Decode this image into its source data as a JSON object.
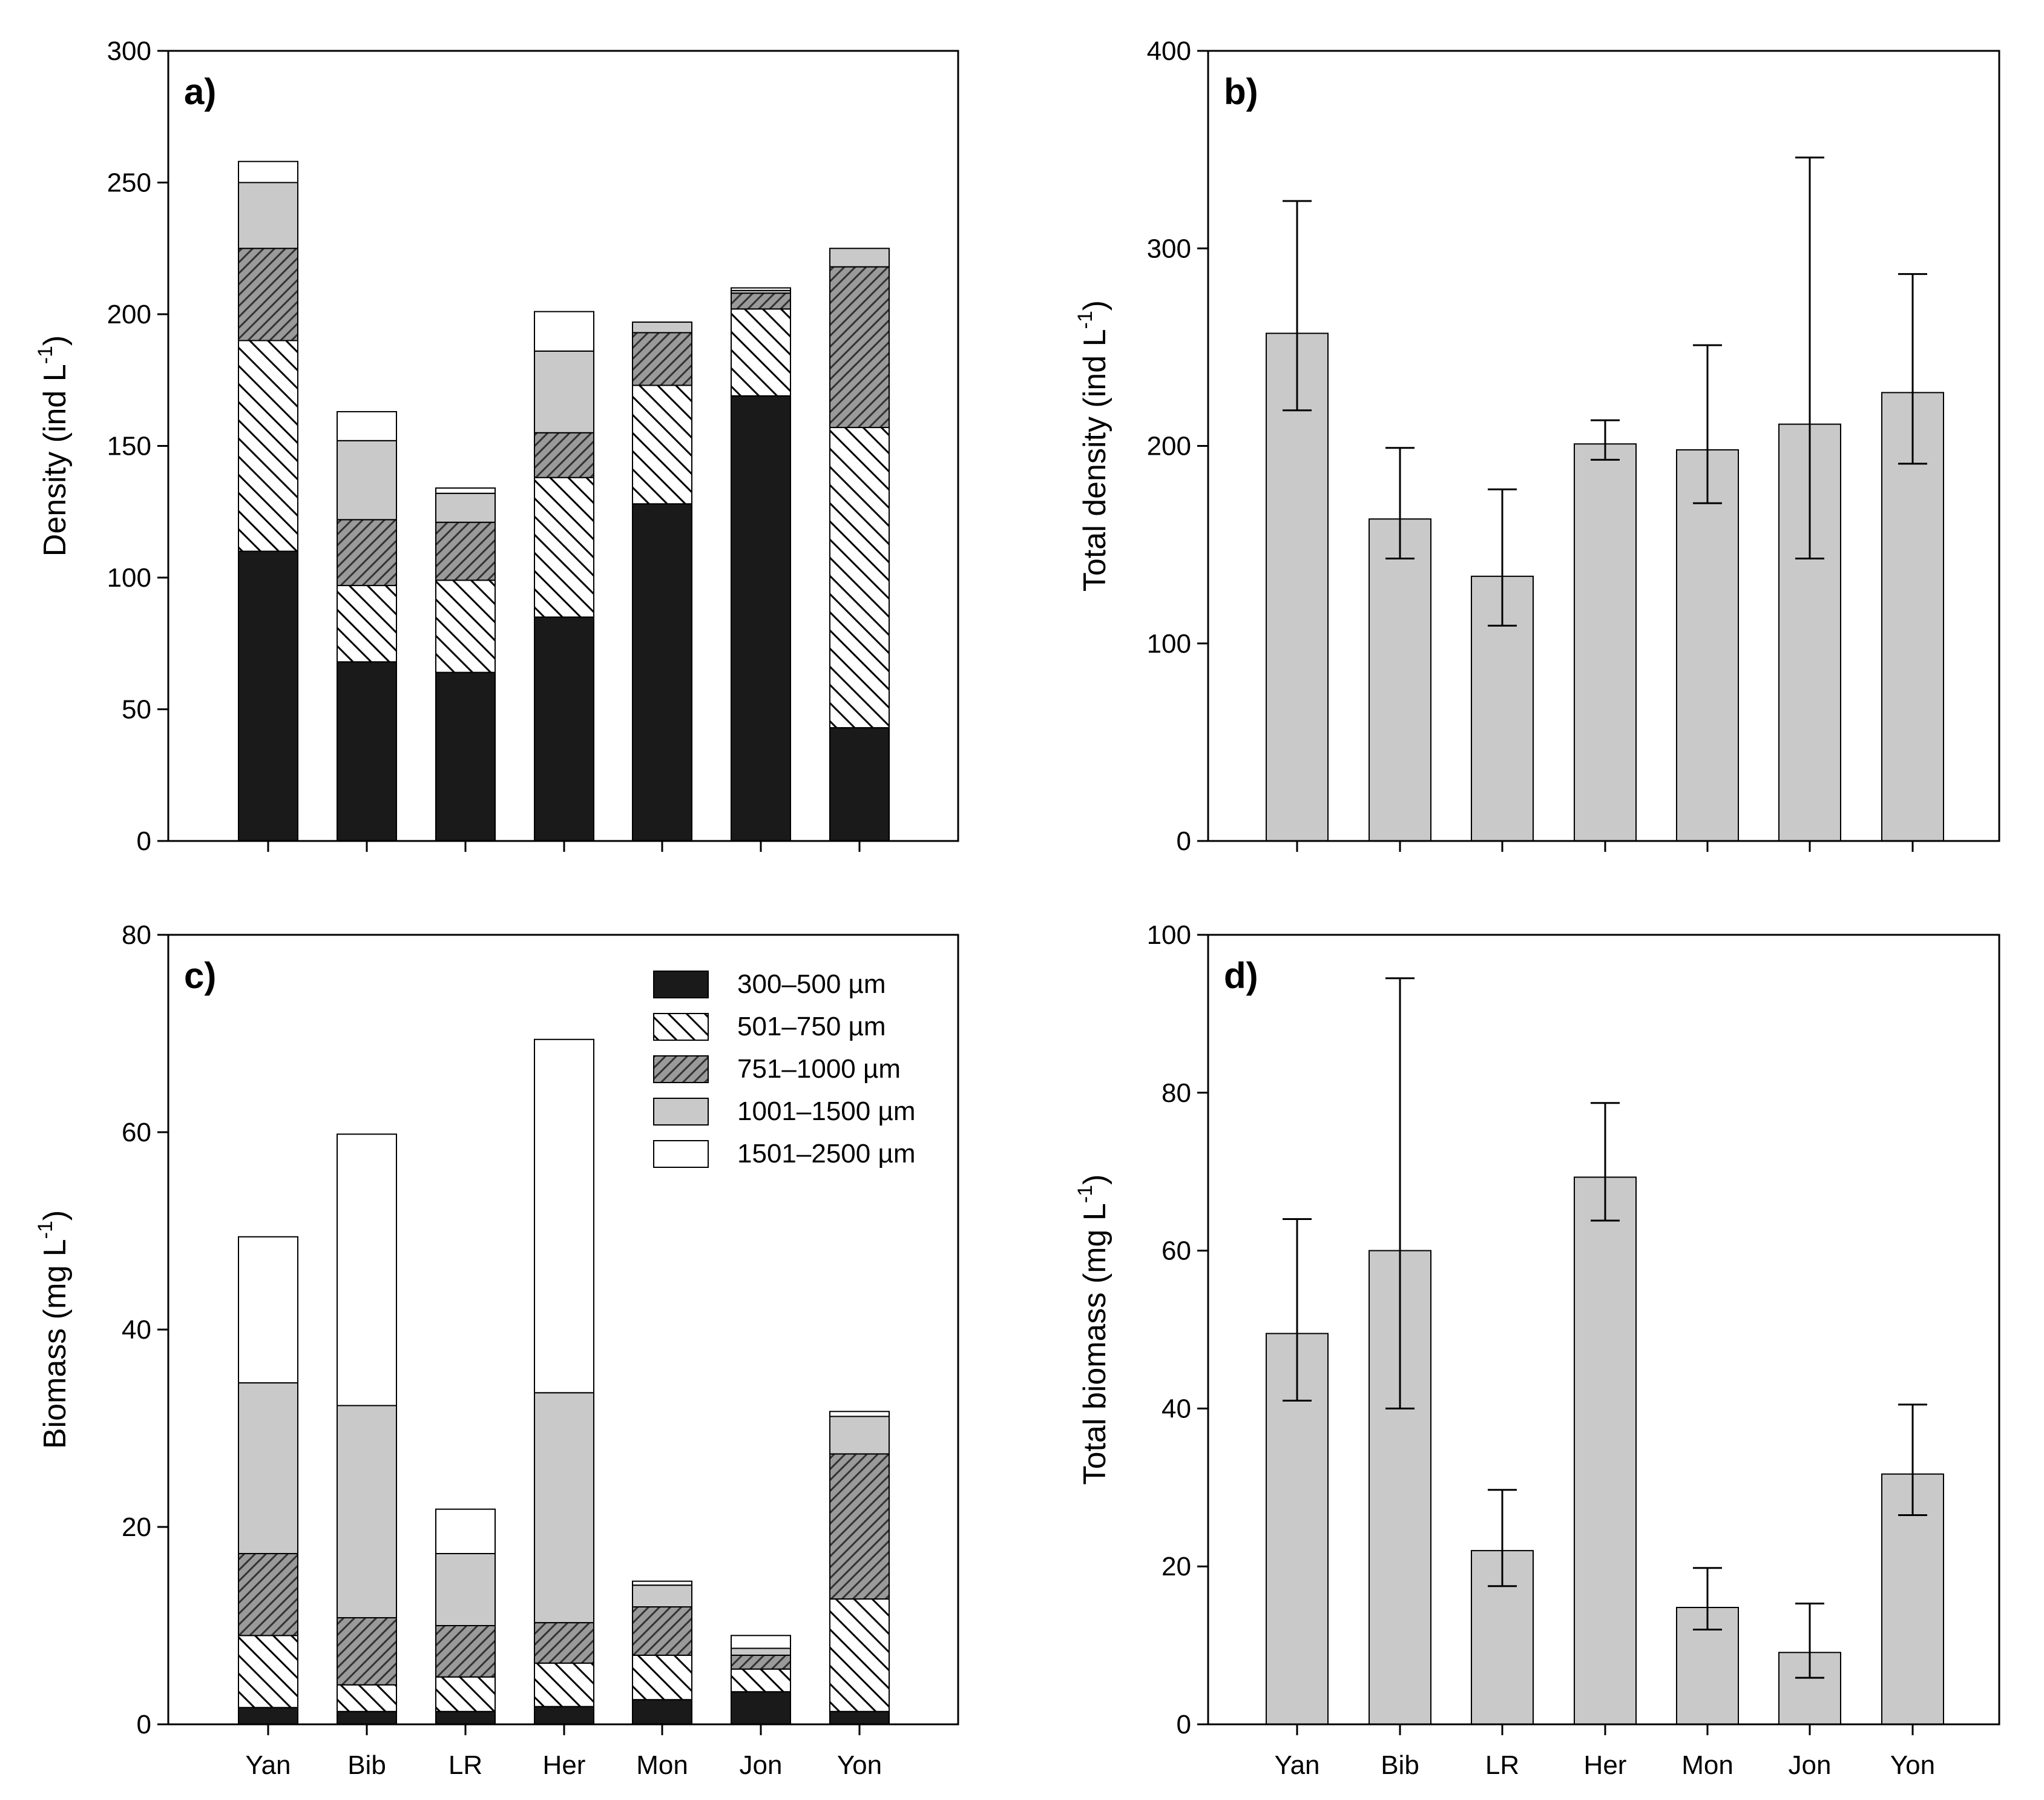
{
  "chart_data": [
    {
      "panel": "a)",
      "type": "stacked_bar",
      "ylabel": "Density (ind L",
      "ylabel_sup": "-1",
      "ylabel_end": ")",
      "ylim": [
        0,
        300
      ],
      "yticks": [
        0,
        50,
        100,
        150,
        200,
        250,
        300
      ],
      "categories": [
        "Yan",
        "Bib",
        "LR",
        "Her",
        "Mon",
        "Jon",
        "Yon"
      ],
      "series": [
        {
          "name": "300–500 µm",
          "pattern": "solid-black",
          "values": [
            110,
            68,
            64,
            85,
            128,
            169,
            43
          ]
        },
        {
          "name": "501–750 µm",
          "pattern": "hatch-back",
          "values": [
            80,
            29,
            35,
            53,
            45,
            33,
            114
          ]
        },
        {
          "name": "751–1000 µm",
          "pattern": "hatch-gray",
          "values": [
            35,
            25,
            22,
            17,
            20,
            6,
            61
          ]
        },
        {
          "name": "1001–1500 µm",
          "pattern": "solid-gray",
          "values": [
            25,
            30,
            11,
            31,
            4,
            1,
            7
          ]
        },
        {
          "name": "1501–2500 µm",
          "pattern": "solid-white",
          "values": [
            8,
            11,
            2,
            15,
            0,
            1,
            0
          ]
        }
      ]
    },
    {
      "panel": "b)",
      "type": "bar_errorbar",
      "ylabel": "Total density (ind L",
      "ylabel_sup": "-1",
      "ylabel_end": ")",
      "ylim": [
        0,
        400
      ],
      "yticks": [
        0,
        100,
        200,
        300,
        400
      ],
      "categories": [
        "Yan",
        "Bib",
        "LR",
        "Her",
        "Mon",
        "Jon",
        "Yon"
      ],
      "values": [
        257,
        163,
        134,
        201,
        198,
        211,
        227
      ],
      "err_low": [
        218,
        143,
        109,
        193,
        171,
        143,
        191
      ],
      "err_high": [
        324,
        199,
        178,
        213,
        251,
        346,
        287
      ]
    },
    {
      "panel": "c)",
      "type": "stacked_bar",
      "ylabel": "Biomass (mg L",
      "ylabel_sup": "-1",
      "ylabel_end": ")",
      "ylim": [
        0,
        80
      ],
      "yticks": [
        0,
        20,
        40,
        60,
        80
      ],
      "categories": [
        "Yan",
        "Bib",
        "LR",
        "Her",
        "Mon",
        "Jon",
        "Yon"
      ],
      "series": [
        {
          "name": "300–500 µm",
          "pattern": "solid-black",
          "values": [
            1.7,
            1.3,
            1.3,
            1.8,
            2.5,
            3.3,
            1.3
          ]
        },
        {
          "name": "501–750 µm",
          "pattern": "hatch-back",
          "values": [
            7.3,
            2.7,
            3.5,
            4.4,
            4.5,
            2.3,
            11.4
          ]
        },
        {
          "name": "751–1000 µm",
          "pattern": "hatch-gray",
          "values": [
            8.3,
            6.8,
            5.2,
            4.1,
            4.9,
            1.4,
            14.7
          ]
        },
        {
          "name": "1001–1500 µm",
          "pattern": "solid-gray",
          "values": [
            17.3,
            21.5,
            7.3,
            23.3,
            2.2,
            0.7,
            3.8
          ]
        },
        {
          "name": "1501–2500 µm",
          "pattern": "solid-white",
          "values": [
            14.8,
            27.5,
            4.5,
            35.8,
            0.4,
            1.3,
            0.5
          ]
        }
      ],
      "legend_position": "top-right",
      "legend": [
        "300–500 µm",
        "501–750 µm",
        "751–1000 µm",
        "1001–1500 µm",
        "1501–2500 µm"
      ]
    },
    {
      "panel": "d)",
      "type": "bar_errorbar",
      "ylabel": "Total biomass (mg L",
      "ylabel_sup": "-1",
      "ylabel_end": ")",
      "ylim": [
        0,
        100
      ],
      "yticks": [
        0,
        20,
        40,
        60,
        80,
        100
      ],
      "categories": [
        "Yan",
        "Bib",
        "LR",
        "Her",
        "Mon",
        "Jon",
        "Yon"
      ],
      "values": [
        49.5,
        60,
        22,
        69.3,
        14.8,
        9.1,
        31.7
      ],
      "err_low": [
        41,
        40,
        17.5,
        63.8,
        12,
        5.9,
        26.5
      ],
      "err_high": [
        64,
        94.5,
        29.7,
        78.7,
        19.8,
        15.3,
        40.5
      ]
    }
  ],
  "colors": {
    "black": "#1a1a1a",
    "gray": "#c9c9c9",
    "dark_hatch_bg": "#9a9a9a",
    "white": "#ffffff",
    "axis": "#000000"
  }
}
